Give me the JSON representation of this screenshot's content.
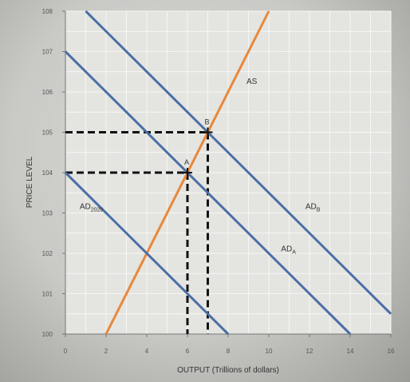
{
  "chart_data": {
    "type": "line",
    "title": "",
    "xlabel": "OUTPUT (Trillions of dollars)",
    "ylabel": "PRICE LEVEL",
    "xlim": [
      0,
      16
    ],
    "ylim": [
      100,
      108
    ],
    "x_ticks": [
      "0",
      "2",
      "4",
      "6",
      "8",
      "10",
      "12",
      "14",
      "16"
    ],
    "y_ticks": [
      "100",
      "101",
      "102",
      "103",
      "104",
      "105",
      "106",
      "107",
      "108"
    ],
    "grid": true,
    "series": [
      {
        "name": "AS",
        "color": "#e8883a",
        "points": [
          [
            2,
            100
          ],
          [
            10,
            108
          ]
        ]
      },
      {
        "name": "AD2020",
        "label_main": "AD",
        "label_sub": "2020",
        "color": "#4a6fa5",
        "points": [
          [
            0,
            104
          ],
          [
            8,
            100
          ]
        ]
      },
      {
        "name": "ADA",
        "label_main": "AD",
        "label_sub": "A",
        "color": "#4a6fa5",
        "points": [
          [
            0,
            107
          ],
          [
            14,
            100
          ]
        ]
      },
      {
        "name": "ADB",
        "label_main": "AD",
        "label_sub": "B",
        "color": "#4a6fa5",
        "points": [
          [
            1,
            108
          ],
          [
            16,
            100.5
          ]
        ]
      }
    ],
    "points": [
      {
        "label": "A",
        "x": 6,
        "y": 104
      },
      {
        "label": "B",
        "x": 7,
        "y": 105
      }
    ]
  }
}
